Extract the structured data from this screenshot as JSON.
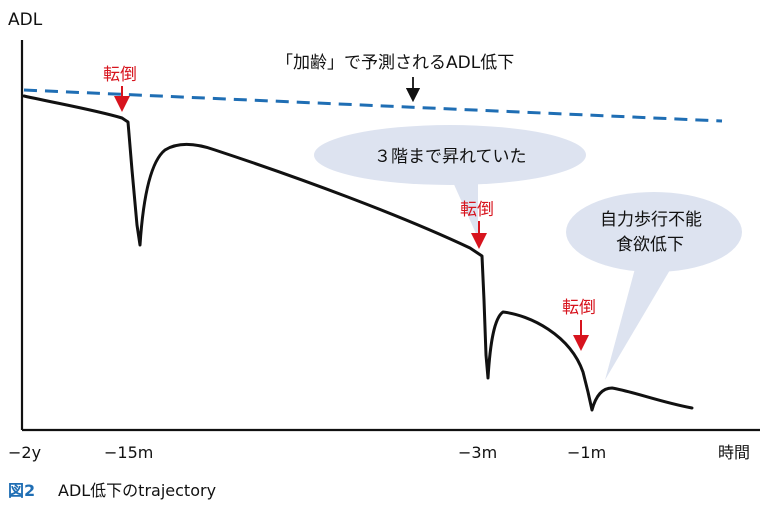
{
  "axis": {
    "y_label": "ADL",
    "x_label": "時間",
    "ticks": [
      "−2y",
      "−15m",
      "−3m",
      "−1m"
    ]
  },
  "annotations": {
    "aging_prediction": "「加齢」で予測されるADL低下",
    "fall_label": "転倒",
    "bubble_stairs": "３階まで昇れていた",
    "bubble_decline_line1": "自力歩行不能",
    "bubble_decline_line2": "食欲低下"
  },
  "caption": {
    "number": "図2",
    "text": "ADL低下のtrajectory"
  },
  "colors": {
    "line": "#111111",
    "dashed_prediction": "#1f6eb4",
    "fall_arrow": "#d7141e",
    "bubble_fill": "#dde3f0",
    "caption_number": "#1f6eb4"
  }
}
